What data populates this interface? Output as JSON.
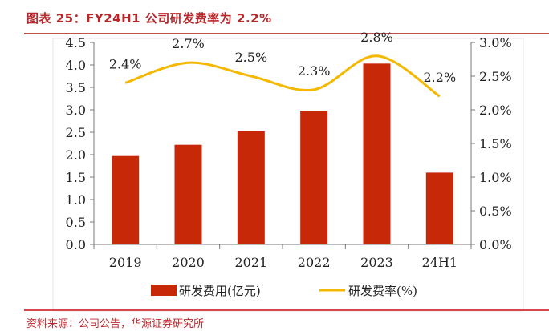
{
  "title": "图表 25：FY24H1 公司研发费率为 2.2%",
  "source": "资料来源：公司公告，华源证券研究所",
  "chart_data": {
    "type": "bar+line",
    "categories": [
      "2019",
      "2020",
      "2021",
      "2022",
      "2023",
      "24H1"
    ],
    "series": [
      {
        "name": "研发费用(亿元)",
        "type": "bar",
        "axis": "left",
        "color": "#c62808",
        "values": [
          1.97,
          2.22,
          2.52,
          2.98,
          4.03,
          1.6
        ]
      },
      {
        "name": "研发费率(%)",
        "type": "line",
        "axis": "right",
        "color": "#f5b800",
        "values": [
          2.4,
          2.7,
          2.5,
          2.3,
          2.8,
          2.2
        ],
        "labels": [
          "2.4%",
          "2.7%",
          "2.5%",
          "2.3%",
          "2.8%",
          "2.2%"
        ]
      }
    ],
    "left_axis": {
      "ylim": [
        0,
        4.5
      ],
      "ticks": [
        "0.0",
        "0.5",
        "1.0",
        "1.5",
        "2.0",
        "2.5",
        "3.0",
        "3.5",
        "4.0",
        "4.5"
      ]
    },
    "right_axis": {
      "ylim": [
        0,
        3.0
      ],
      "ticks": [
        "0.0%",
        "0.5%",
        "1.0%",
        "1.5%",
        "2.0%",
        "2.5%",
        "3.0%"
      ]
    },
    "legend": "bottom",
    "grid": false
  }
}
